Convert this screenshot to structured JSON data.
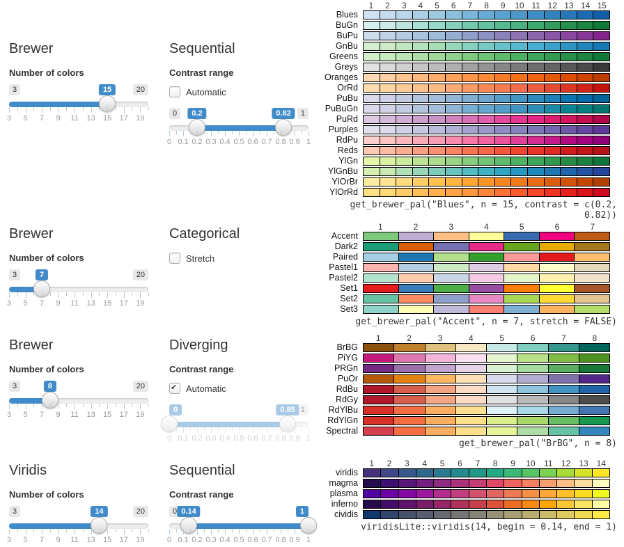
{
  "ui_colors": {
    "accent": "#428bca",
    "slider_track": "#ededed",
    "tick": "#b6cbdb",
    "tick_label": "#999999",
    "swatch_border": "#000000",
    "text": "#333333"
  },
  "scales": {
    "colors": {
      "min": 3,
      "max": 20,
      "tick_step": 1,
      "label_values": [
        3,
        5,
        7,
        9,
        11,
        13,
        15,
        17,
        19
      ],
      "labels": [
        "3",
        "5",
        "7",
        "9",
        "11",
        "13",
        "15",
        "17",
        "19"
      ]
    },
    "contrast": {
      "min": 0,
      "max": 1,
      "tick_step": 0.05,
      "label_values": [
        0,
        0.1,
        0.2,
        0.3,
        0.4,
        0.5,
        0.6,
        0.7,
        0.8,
        0.9,
        1
      ],
      "labels": [
        "0",
        "0.1",
        "0.2",
        "0.3",
        "0.4",
        "0.5",
        "0.6",
        "0.7",
        "0.8",
        "0.9",
        "1"
      ]
    }
  },
  "sections": [
    {
      "family": "Brewer",
      "type_title": "Sequential",
      "colors_label": "Number of colors",
      "contrast_label": "Contrast range",
      "checkbox": {
        "label": "Automatic",
        "checked": false
      },
      "n_slider": {
        "scale": "colors",
        "value": 15
      },
      "c_slider": {
        "scale": "contrast",
        "from": 0.2,
        "to": 0.82,
        "disabled": false
      },
      "chart": {
        "type": "palette-swatches",
        "n": 15,
        "contrast": [
          0.2,
          0.82
        ],
        "columns": [
          "1",
          "2",
          "3",
          "4",
          "5",
          "6",
          "7",
          "8",
          "9",
          "10",
          "11",
          "12",
          "13",
          "14",
          "15"
        ],
        "caption": "get_brewer_pal(\"Blues\", n = 15, contrast = c(0.2, 0.82))",
        "rows": [
          {
            "label": "Blues",
            "ramp": [
              "#F7FBFF",
              "#DEEBF7",
              "#C6DBEF",
              "#9ECAE1",
              "#6BAED6",
              "#4292C6",
              "#2171B5",
              "#08519C",
              "#08306B"
            ]
          },
          {
            "label": "BuGn",
            "ramp": [
              "#F7FCFD",
              "#E5F5F9",
              "#CCECE6",
              "#99D8C9",
              "#66C2A4",
              "#41AE76",
              "#238B45",
              "#006D2C",
              "#00441B"
            ]
          },
          {
            "label": "BuPu",
            "ramp": [
              "#F7FCFD",
              "#E0ECF4",
              "#BFD3E6",
              "#9EBCDA",
              "#8C96C6",
              "#8C6BB1",
              "#88419D",
              "#810F7C",
              "#4D004B"
            ]
          },
          {
            "label": "GnBu",
            "ramp": [
              "#F7FCF0",
              "#E0F3DB",
              "#CCEBC5",
              "#A8DDB5",
              "#7BCCC4",
              "#4EB3D3",
              "#2B8CBE",
              "#0868AC",
              "#084081"
            ]
          },
          {
            "label": "Greens",
            "ramp": [
              "#F7FCF5",
              "#E5F5E0",
              "#C7E9C0",
              "#A1D99B",
              "#74C476",
              "#41AB5D",
              "#238B45",
              "#006D2C",
              "#00441B"
            ]
          },
          {
            "label": "Greys",
            "ramp": [
              "#FFFFFF",
              "#F0F0F0",
              "#D9D9D9",
              "#BDBDBD",
              "#969696",
              "#737373",
              "#525252",
              "#252525",
              "#000000"
            ]
          },
          {
            "label": "Oranges",
            "ramp": [
              "#FFF5EB",
              "#FEE6CE",
              "#FDD0A2",
              "#FDAE6B",
              "#FD8D3C",
              "#F16913",
              "#D94801",
              "#A63603",
              "#7F2704"
            ]
          },
          {
            "label": "OrRd",
            "ramp": [
              "#FFF7EC",
              "#FEE8C8",
              "#FDD49E",
              "#FDBB84",
              "#FC8D59",
              "#EF6548",
              "#D7301F",
              "#B30000",
              "#7F0000"
            ]
          },
          {
            "label": "PuBu",
            "ramp": [
              "#FFF7FB",
              "#ECE7F2",
              "#D0D1E6",
              "#A6BDDB",
              "#74A9CF",
              "#3690C0",
              "#0570B0",
              "#045A8D",
              "#023858"
            ]
          },
          {
            "label": "PuBuGn",
            "ramp": [
              "#FFF7FB",
              "#ECE2F0",
              "#D0D1E6",
              "#A6BDDB",
              "#67A9CF",
              "#3690C0",
              "#02818A",
              "#016C59",
              "#014636"
            ]
          },
          {
            "label": "PuRd",
            "ramp": [
              "#F7F4F9",
              "#E7E1EF",
              "#D4B9DA",
              "#C994C7",
              "#DF65B0",
              "#E7298A",
              "#CE1256",
              "#980043",
              "#67001F"
            ]
          },
          {
            "label": "Purples",
            "ramp": [
              "#FCFBFD",
              "#EFEDF5",
              "#DADAEB",
              "#BCBDDC",
              "#9E9AC8",
              "#807DBA",
              "#6A51A3",
              "#54278F",
              "#3F007D"
            ]
          },
          {
            "label": "RdPu",
            "ramp": [
              "#FFF7F3",
              "#FDE0DD",
              "#FCC5C0",
              "#FA9FB5",
              "#F768A1",
              "#DD3497",
              "#AE017E",
              "#7A0177",
              "#49006A"
            ]
          },
          {
            "label": "Reds",
            "ramp": [
              "#FFF5F0",
              "#FEE0D2",
              "#FCBBA1",
              "#FC9272",
              "#FB6A4A",
              "#EF3B2C",
              "#CB181D",
              "#A50F15",
              "#67000D"
            ]
          },
          {
            "label": "YlGn",
            "ramp": [
              "#FFFFE5",
              "#F7FCB9",
              "#D9F0A3",
              "#ADDD8E",
              "#78C679",
              "#41AB5D",
              "#238443",
              "#006837",
              "#004529"
            ]
          },
          {
            "label": "YlGnBu",
            "ramp": [
              "#FFFFD9",
              "#EDF8B1",
              "#C7E9B4",
              "#7FCDBB",
              "#41B6C4",
              "#1D91C0",
              "#225EA8",
              "#253494",
              "#081D58"
            ]
          },
          {
            "label": "YlOrBr",
            "ramp": [
              "#FFFFE5",
              "#FFF7BC",
              "#FEE391",
              "#FEC44F",
              "#FE9929",
              "#EC7014",
              "#CC4C02",
              "#993404",
              "#662506"
            ]
          },
          {
            "label": "YlOrRd",
            "ramp": [
              "#FFFFCC",
              "#FFEDA0",
              "#FED976",
              "#FEB24C",
              "#FD8D3C",
              "#FC4E2A",
              "#E31A1C",
              "#BD0026",
              "#800026"
            ]
          }
        ]
      }
    },
    {
      "family": "Brewer",
      "type_title": "Categorical",
      "colors_label": "Number of colors",
      "checkbox": {
        "label": "Stretch",
        "checked": false
      },
      "n_slider": {
        "scale": "colors",
        "value": 7
      },
      "chart": {
        "type": "palette-swatches",
        "n": 7,
        "columns": [
          "1",
          "2",
          "3",
          "4",
          "5",
          "6",
          "7"
        ],
        "caption": "get_brewer_pal(\"Accent\", n = 7, stretch = FALSE)",
        "rows": [
          {
            "label": "Accent",
            "colors": [
              "#7FC97F",
              "#BEAED4",
              "#FDC086",
              "#FFFF99",
              "#386CB0",
              "#F0027F",
              "#BF5B17"
            ]
          },
          {
            "label": "Dark2",
            "colors": [
              "#1B9E77",
              "#D95F02",
              "#7570B3",
              "#E7298A",
              "#66A61E",
              "#E6AB02",
              "#A6761D"
            ]
          },
          {
            "label": "Paired",
            "colors": [
              "#A6CEE3",
              "#1F78B4",
              "#B2DF8A",
              "#33A02C",
              "#FB9A99",
              "#E31A1C",
              "#FDBF6F"
            ]
          },
          {
            "label": "Pastel1",
            "colors": [
              "#FBB4AE",
              "#B3CDE3",
              "#CCEBC5",
              "#DECBE4",
              "#FED9A6",
              "#FFFFCC",
              "#E5D8BD"
            ]
          },
          {
            "label": "Pastel2",
            "colors": [
              "#B3E2CD",
              "#FDCDAC",
              "#CBD5E8",
              "#F4CAE4",
              "#E6F5C9",
              "#FFF2AE",
              "#F1E2CC"
            ]
          },
          {
            "label": "Set1",
            "colors": [
              "#E41A1C",
              "#377EB8",
              "#4DAF4A",
              "#984EA3",
              "#FF7F00",
              "#FFFF33",
              "#A65628"
            ]
          },
          {
            "label": "Set2",
            "colors": [
              "#66C2A5",
              "#FC8D62",
              "#8DA0CB",
              "#E78AC3",
              "#A6D854",
              "#FFD92F",
              "#E5C494"
            ]
          },
          {
            "label": "Set3",
            "colors": [
              "#8DD3C7",
              "#FFFFB3",
              "#BEBADA",
              "#FB8072",
              "#80B1D3",
              "#FDB462",
              "#B3DE69"
            ]
          }
        ]
      }
    },
    {
      "family": "Brewer",
      "type_title": "Diverging",
      "colors_label": "Number of colors",
      "contrast_label": "Contrast range",
      "checkbox": {
        "label": "Automatic",
        "checked": true
      },
      "n_slider": {
        "scale": "colors",
        "value": 8
      },
      "c_slider": {
        "scale": "contrast",
        "from": 0,
        "to": 0.85,
        "disabled": true
      },
      "chart": {
        "type": "palette-swatches",
        "n": 8,
        "columns": [
          "1",
          "2",
          "3",
          "4",
          "5",
          "6",
          "7",
          "8"
        ],
        "caption": "get_brewer_pal(\"BrBG\", n = 8)",
        "rows": [
          {
            "label": "BrBG",
            "colors": [
              "#8C510A",
              "#BF812D",
              "#DFC27D",
              "#F6E8C3",
              "#C7EAE5",
              "#80CDC1",
              "#35978F",
              "#01665E"
            ]
          },
          {
            "label": "PiYG",
            "colors": [
              "#C51B7D",
              "#DE77AE",
              "#F1B6DA",
              "#FDE0EF",
              "#E6F5D0",
              "#B8E186",
              "#7FBC41",
              "#4D9221"
            ]
          },
          {
            "label": "PRGn",
            "colors": [
              "#762A83",
              "#9970AB",
              "#C2A5CF",
              "#E7D4E8",
              "#D9F0D3",
              "#A6DBA0",
              "#5AAE61",
              "#1B7837"
            ]
          },
          {
            "label": "PuOr",
            "colors": [
              "#B35806",
              "#E08214",
              "#FDB863",
              "#FEE0B6",
              "#D8DAEB",
              "#B2ABD2",
              "#8073AC",
              "#542788"
            ]
          },
          {
            "label": "RdBu",
            "colors": [
              "#B2182B",
              "#D6604D",
              "#F4A582",
              "#FDDBC7",
              "#D1E5F0",
              "#92C5DE",
              "#4393C3",
              "#2166AC"
            ]
          },
          {
            "label": "RdGy",
            "colors": [
              "#B2182B",
              "#D6604D",
              "#F4A582",
              "#FDDBC7",
              "#E0E0E0",
              "#BABABA",
              "#878787",
              "#4D4D4D"
            ]
          },
          {
            "label": "RdYlBu",
            "colors": [
              "#D73027",
              "#F46D43",
              "#FDAE61",
              "#FEE090",
              "#E0F3F8",
              "#ABD9E9",
              "#74ADD1",
              "#4575B4"
            ]
          },
          {
            "label": "RdYlGn",
            "colors": [
              "#D73027",
              "#F46D43",
              "#FDAE61",
              "#FEE08B",
              "#D9EF8B",
              "#A6D96A",
              "#66BD63",
              "#1A9850"
            ]
          },
          {
            "label": "Spectral",
            "colors": [
              "#D53E4F",
              "#F46D43",
              "#FDAE61",
              "#FEE08B",
              "#E6F598",
              "#ABDDA4",
              "#66C2A5",
              "#3288BD"
            ]
          }
        ]
      }
    },
    {
      "family": "Viridis",
      "type_title": "Sequential",
      "colors_label": "Number of colors",
      "contrast_label": "Contrast range",
      "n_slider": {
        "scale": "colors",
        "value": 14
      },
      "c_slider": {
        "scale": "contrast",
        "from": 0.14,
        "to": 1,
        "disabled": false
      },
      "chart": {
        "type": "palette-swatches",
        "n": 14,
        "contrast": [
          0.14,
          1
        ],
        "columns": [
          "1",
          "2",
          "3",
          "4",
          "5",
          "6",
          "7",
          "8",
          "9",
          "10",
          "11",
          "12",
          "13",
          "14"
        ],
        "caption": "viridisLite::viridis(14, begin = 0.14, end = 1)",
        "rows": [
          {
            "label": "viridis",
            "ramp": [
              "#440154",
              "#482576",
              "#414487",
              "#35608D",
              "#2A788E",
              "#21918C",
              "#22A884",
              "#44BF70",
              "#7AD151",
              "#BDDF26",
              "#FDE725"
            ]
          },
          {
            "label": "magma",
            "ramp": [
              "#000004",
              "#140E36",
              "#3B0F70",
              "#641A80",
              "#8C2981",
              "#B73779",
              "#DE4968",
              "#F7705C",
              "#FE9F6D",
              "#FECF92",
              "#FCFDBF"
            ]
          },
          {
            "label": "plasma",
            "ramp": [
              "#0D0887",
              "#41049D",
              "#6A00A8",
              "#8F0DA4",
              "#B12A90",
              "#CC4778",
              "#E16462",
              "#F1844B",
              "#FCA636",
              "#FCCE25",
              "#F0F921"
            ]
          },
          {
            "label": "inferno",
            "ramp": [
              "#000004",
              "#160B39",
              "#420A68",
              "#6A176E",
              "#932667",
              "#BC3754",
              "#DD513A",
              "#F37819",
              "#FCA50A",
              "#F6D746",
              "#FCFFA4"
            ]
          },
          {
            "label": "cividis",
            "ramp": [
              "#00204D",
              "#00336F",
              "#39486B",
              "#575D6D",
              "#707173",
              "#8A8779",
              "#A69D75",
              "#C4B56C",
              "#E4CF5B",
              "#FFEA46"
            ]
          }
        ]
      }
    }
  ]
}
